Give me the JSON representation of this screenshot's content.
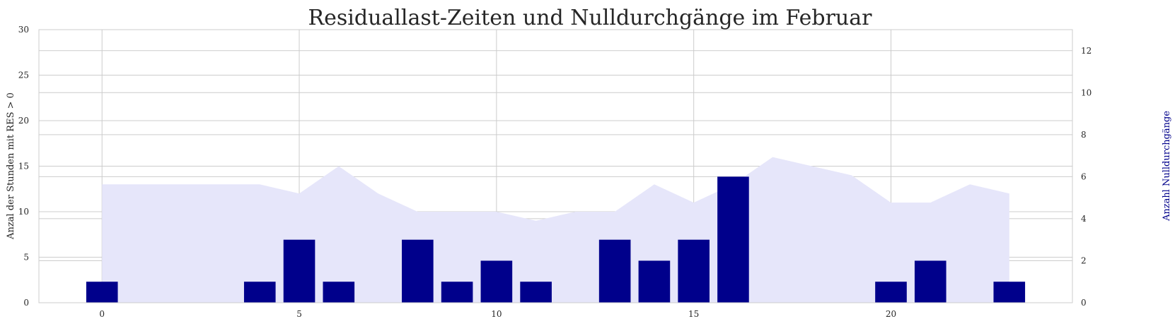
{
  "chart_data": {
    "type": "bar",
    "title": "Residuallast-Zeiten und Nulldurchgänge im Februar",
    "xlabel": "",
    "ylabel": "Anzal der Stunden mit RES > 0",
    "ylabel_right": "Anzahl Nulldurchgänge",
    "xlim": [
      -1.6,
      24.6
    ],
    "ylim": [
      0,
      30
    ],
    "ylim_right": [
      0,
      13
    ],
    "x_ticks": [
      "0",
      "5",
      "10",
      "15",
      "20"
    ],
    "x_tick_values": [
      0,
      5,
      10,
      15,
      20
    ],
    "y_ticks": [
      "0",
      "5",
      "10",
      "15",
      "20",
      "25",
      "30"
    ],
    "y_tick_values": [
      0,
      5,
      10,
      15,
      20,
      25,
      30
    ],
    "y_right_ticks": [
      "0",
      "2",
      "4",
      "6",
      "8",
      "10",
      "12"
    ],
    "y_right_tick_values": [
      0,
      2,
      4,
      6,
      8,
      10,
      12
    ],
    "grid": true,
    "colors": {
      "area": "#e6e6fa",
      "bars": "#00008b",
      "ylabel_right": "#00008b"
    },
    "series": [
      {
        "type": "area",
        "axis": "left",
        "x": [
          0,
          1,
          2,
          3,
          4,
          5,
          6,
          7,
          8,
          9,
          10,
          11,
          12,
          13,
          14,
          15,
          16,
          17,
          18,
          19,
          20,
          21,
          22,
          23
        ],
        "values": [
          13,
          13,
          13,
          13,
          13,
          12,
          15,
          12,
          10,
          10,
          10,
          9,
          10,
          10,
          13,
          11,
          13,
          16,
          15,
          14,
          11,
          11,
          13,
          12
        ]
      },
      {
        "type": "bar",
        "axis": "right",
        "x": [
          0,
          4,
          5,
          6,
          8,
          9,
          10,
          11,
          13,
          14,
          15,
          16,
          20,
          21,
          23
        ],
        "values": [
          1,
          1,
          3,
          1,
          3,
          1,
          2,
          1,
          3,
          2,
          3,
          6,
          1,
          2,
          1
        ]
      }
    ]
  }
}
